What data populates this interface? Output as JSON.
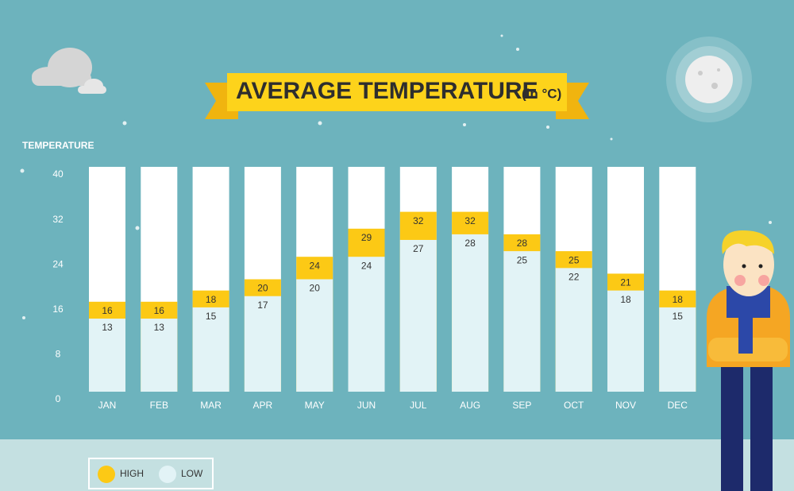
{
  "chart_data": {
    "type": "bar",
    "title": "AVERAGE TEMPERATURE",
    "title_unit": "(in °C)",
    "y_label": "TEMPERATURE",
    "categories": [
      "JAN",
      "FEB",
      "MAR",
      "APR",
      "MAY",
      "JUN",
      "JUL",
      "AUG",
      "SEP",
      "OCT",
      "NOV",
      "DEC"
    ],
    "series": [
      {
        "name": "HIGH",
        "color": "#fcc915",
        "values": [
          16,
          16,
          18,
          20,
          24,
          29,
          32,
          32,
          28,
          25,
          21,
          18
        ]
      },
      {
        "name": "LOW",
        "color": "#e2f3f6",
        "values": [
          13,
          13,
          15,
          17,
          20,
          24,
          27,
          28,
          25,
          22,
          18,
          15
        ]
      }
    ],
    "ylim": [
      0,
      40
    ],
    "yticks": [
      0,
      8,
      16,
      24,
      32,
      40
    ],
    "grid": false
  }
}
